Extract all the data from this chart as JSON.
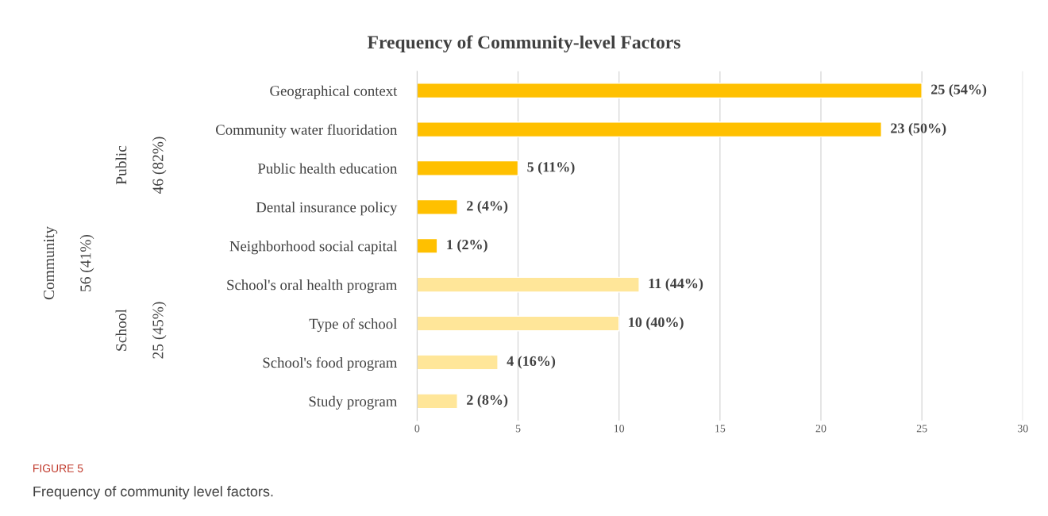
{
  "chart_data": {
    "type": "bar",
    "orientation": "horizontal",
    "title": "Frequency of Community-level Factors",
    "categories": [
      "Geographical context",
      "Community water fluoridation",
      "Public health education",
      "Dental insurance policy",
      "Neighborhood social capital",
      "School's oral health program",
      "Type of school",
      "School's food program",
      "Study program"
    ],
    "values": [
      25,
      23,
      5,
      2,
      1,
      11,
      10,
      4,
      2
    ],
    "colors": [
      "#ffc000",
      "#ffc000",
      "#ffc000",
      "#ffc000",
      "#ffc000",
      "#ffe699",
      "#ffe699",
      "#ffe699",
      "#ffe699"
    ],
    "value_labels": [
      "25 (54%)",
      "23 (50%)",
      "5 (11%)",
      "2 (4%)",
      "1 (2%)",
      "11 (44%)",
      "10 (40%)",
      "4 (16%)",
      "2 (8%)"
    ],
    "xlim": [
      0,
      30
    ],
    "xticks": [
      0,
      5,
      10,
      15,
      20,
      25,
      30
    ],
    "grid": "x",
    "legend": false,
    "annotations": [
      "Community",
      "56 (41%)",
      "Public",
      "46 (82%)",
      "School",
      "25 (45%)",
      "FIGURE 5",
      "Frequency of community level factors."
    ]
  }
}
